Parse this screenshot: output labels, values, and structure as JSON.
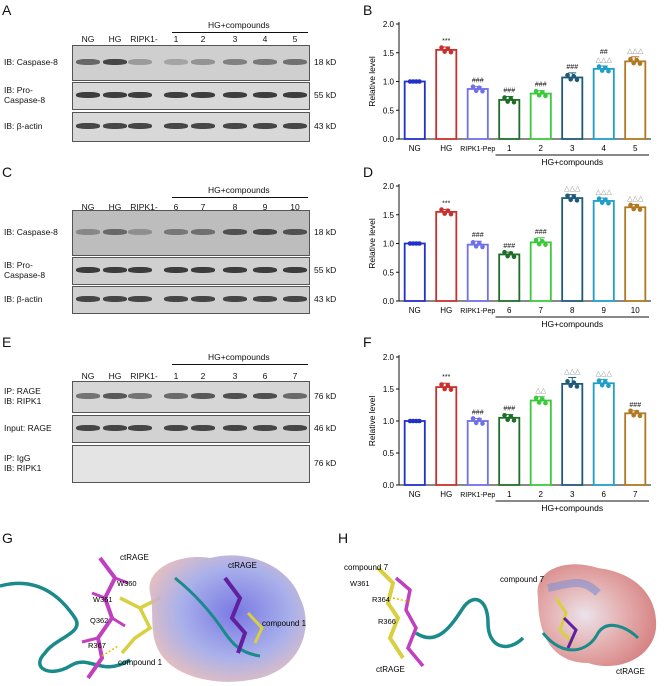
{
  "panels": {
    "A": {
      "letter": "A",
      "header": "HG+compounds",
      "lanes": [
        "NG",
        "HG",
        "RIPK1-Pep",
        "1",
        "2",
        "3",
        "4",
        "5"
      ],
      "rows": [
        {
          "label": "IB: Caspase-8",
          "kd": "18 kD"
        },
        {
          "label": "IB: Pro-\nCaspase-8",
          "kd": "55 kD"
        },
        {
          "label": "IB: β-actin",
          "kd": "43 kD"
        }
      ]
    },
    "C": {
      "letter": "C",
      "header": "HG+compounds",
      "lanes": [
        "NG",
        "HG",
        "RIPK1-Pep",
        "6",
        "7",
        "8",
        "9",
        "10"
      ],
      "rows": [
        {
          "label": "IB: Caspase-8",
          "kd": "18 kD"
        },
        {
          "label": "IB: Pro-\nCaspase-8",
          "kd": "55 kD"
        },
        {
          "label": "IB: β-actin",
          "kd": "43 kD"
        }
      ]
    },
    "E": {
      "letter": "E",
      "header": "HG+compounds",
      "lanes": [
        "NG",
        "HG",
        "RIPK1-Pep",
        "1",
        "2",
        "3",
        "6",
        "7"
      ],
      "rows": [
        {
          "label": "IP: RAGE\nIB: RIPK1",
          "kd": "76 kD"
        },
        {
          "label": "Input: RAGE",
          "kd": "46 kD"
        },
        {
          "label": "IP: IgG\nIB: RIPK1",
          "kd": "76 kD"
        }
      ]
    },
    "G": {
      "letter": "G",
      "labels": [
        "ctRAGE",
        "W360",
        "W361",
        "Q362",
        "R367",
        "compound 1",
        "ctRAGE",
        "compound 1"
      ]
    },
    "H": {
      "letter": "H",
      "labels": [
        "compound 7",
        "W361",
        "R364",
        "R366",
        "ctRAGE",
        "compound 7",
        "ctRAGE"
      ]
    }
  },
  "chart_data": [
    {
      "panel": "B",
      "type": "bar",
      "ylabel": "Relative level",
      "ylim": [
        0,
        2.0
      ],
      "yticks": [
        "0.0",
        "0.5",
        "1.0",
        "1.5",
        "2.0"
      ],
      "categories": [
        "NG",
        "HG",
        "RIPK1-Pep",
        "1",
        "2",
        "3",
        "4",
        "5"
      ],
      "group_label": "HG+compounds",
      "values": [
        1.0,
        1.55,
        0.87,
        0.68,
        0.79,
        1.07,
        1.22,
        1.35
      ],
      "errors": [
        0.0,
        0.05,
        0.04,
        0.06,
        0.05,
        0.08,
        0.05,
        0.08
      ],
      "colors": [
        "#2030c8",
        "#c8302e",
        "#7070e8",
        "#1e6e2a",
        "#3cc83c",
        "#1e5a7a",
        "#1e9ec8",
        "#b07820"
      ],
      "annotations": [
        "",
        "***",
        "###",
        "###",
        "###",
        "###",
        "##\n△△△",
        "△△△"
      ]
    },
    {
      "panel": "D",
      "type": "bar",
      "ylabel": "Relative level",
      "ylim": [
        0,
        2.0
      ],
      "yticks": [
        "0.0",
        "0.5",
        "1.0",
        "1.5",
        "2.0"
      ],
      "categories": [
        "NG",
        "HG",
        "RIPK1-Pep",
        "6",
        "7",
        "8",
        "9",
        "10"
      ],
      "group_label": "HG+compounds",
      "values": [
        1.0,
        1.55,
        0.98,
        0.81,
        1.02,
        1.79,
        1.74,
        1.63
      ],
      "errors": [
        0.0,
        0.04,
        0.06,
        0.04,
        0.08,
        0.06,
        0.05,
        0.05
      ],
      "colors": [
        "#2030c8",
        "#c8302e",
        "#7070e8",
        "#1e6e2a",
        "#3cc83c",
        "#1e5a7a",
        "#1e9ec8",
        "#b07820"
      ],
      "annotations": [
        "",
        "***",
        "###",
        "###",
        "###",
        "△△△",
        "△△△",
        "△△△"
      ]
    },
    {
      "panel": "F",
      "type": "bar",
      "ylabel": "Relative level",
      "ylim": [
        0,
        2.0
      ],
      "yticks": [
        "0.0",
        "0.5",
        "1.0",
        "1.5",
        "2.0"
      ],
      "categories": [
        "NG",
        "HG",
        "RIPK1-Pep",
        "1",
        "2",
        "3",
        "6",
        "7"
      ],
      "group_label": "HG+compounds",
      "values": [
        1.0,
        1.53,
        1.0,
        1.05,
        1.32,
        1.58,
        1.59,
        1.12
      ],
      "errors": [
        0.0,
        0.06,
        0.04,
        0.05,
        0.06,
        0.1,
        0.06,
        0.04
      ],
      "colors": [
        "#2030c8",
        "#c8302e",
        "#7070e8",
        "#1e6e2a",
        "#3cc83c",
        "#1e5a7a",
        "#1e9ec8",
        "#b07820"
      ],
      "annotations": [
        "",
        "***",
        "###",
        "###",
        "△△",
        "△△△",
        "△△△",
        "###"
      ]
    }
  ]
}
